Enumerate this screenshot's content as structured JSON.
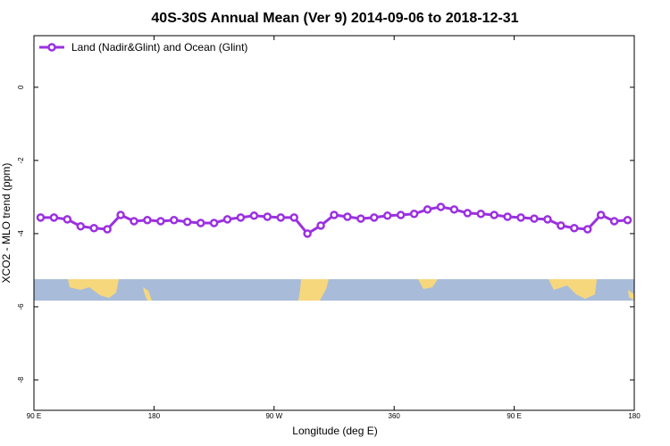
{
  "chart_data": {
    "type": "line",
    "title": "40S-30S Annual Mean (Ver 9)   2014-09-06 to 2018-12-31",
    "x_label": "Longitude (deg E)",
    "y_label": "XCO2 - MLO trend (ppm)",
    "xlim": [
      90,
      540
    ],
    "ylim": [
      -8.83,
      1.41
    ],
    "xticks": [
      {
        "value": 90,
        "label": "90 E"
      },
      180,
      {
        "value": 270,
        "label": "90 W"
      },
      360,
      {
        "value": 450,
        "label": "90 E"
      },
      {
        "value": 540,
        "label": "180"
      }
    ],
    "yticks": [
      0,
      -2,
      -4,
      -6,
      -8
    ],
    "legend": "upper left",
    "x": [
      95,
      105,
      115,
      125,
      135,
      145,
      155,
      165,
      175,
      185,
      195,
      205,
      215,
      225,
      235,
      245,
      255,
      265,
      275,
      285,
      295,
      305,
      315,
      325,
      335,
      345,
      355,
      365,
      375,
      385,
      395,
      405,
      415,
      425,
      435,
      445,
      455,
      465,
      475,
      485,
      495,
      505,
      515,
      525,
      535
    ],
    "series": [
      {
        "name": "Land (Nadir&Glint) and Ocean (Glint)",
        "color": "#9b30e0",
        "values": [
          -3.56,
          -3.56,
          -3.61,
          -3.8,
          -3.85,
          -3.88,
          -3.49,
          -3.66,
          -3.63,
          -3.66,
          -3.63,
          -3.68,
          -3.71,
          -3.71,
          -3.61,
          -3.56,
          -3.51,
          -3.54,
          -3.56,
          -3.56,
          -4.0,
          -3.78,
          -3.49,
          -3.54,
          -3.59,
          -3.56,
          -3.51,
          -3.49,
          -3.46,
          -3.34,
          -3.27,
          -3.34,
          -3.44,
          -3.46,
          -3.49,
          -3.54,
          -3.56,
          -3.59,
          -3.61,
          -3.78,
          -3.85,
          -3.88,
          -3.49,
          -3.66,
          -3.63
        ]
      }
    ]
  }
}
